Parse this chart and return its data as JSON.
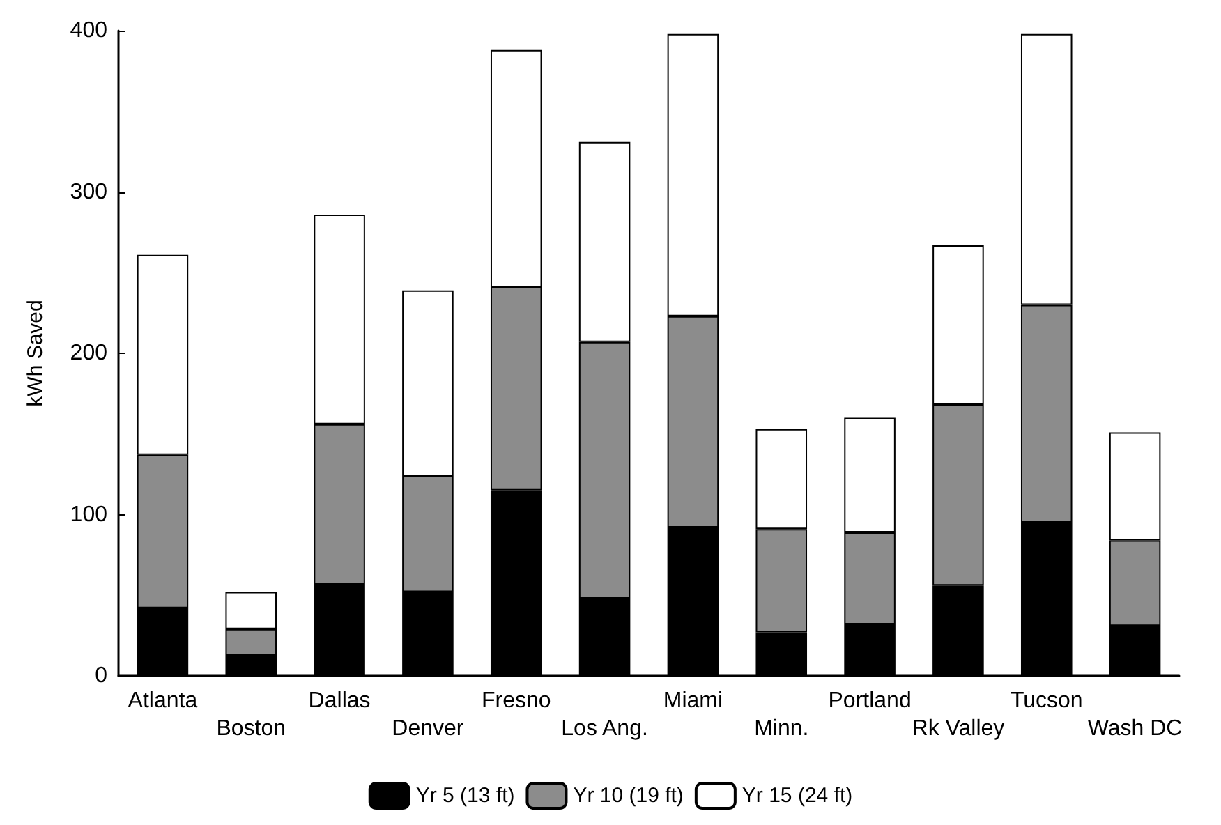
{
  "chart_data": {
    "type": "bar",
    "stacked": true,
    "ylabel": "kWh Saved",
    "categories": [
      "Atlanta",
      "Boston",
      "Dallas",
      "Denver",
      "Fresno",
      "Los Ang.",
      "Miami",
      "Minn.",
      "Portland",
      "Rk Valley",
      "Tucson",
      "Wash DC"
    ],
    "series": [
      {
        "name": "Yr 5 (13 ft)",
        "color": "#000000",
        "values": [
          42,
          13,
          57,
          52,
          115,
          48,
          92,
          27,
          32,
          56,
          95,
          31
        ]
      },
      {
        "name": "Yr 10 (19 ft)",
        "color": "#8c8c8c",
        "values": [
          95,
          16,
          99,
          72,
          126,
          159,
          131,
          64,
          57,
          112,
          135,
          53
        ]
      },
      {
        "name": "Yr 15 (24 ft)",
        "color": "#ffffff",
        "values": [
          124,
          23,
          130,
          115,
          147,
          124,
          175,
          62,
          71,
          99,
          168,
          67
        ]
      }
    ],
    "ylim": [
      0,
      400
    ],
    "yticks": [
      0,
      100,
      200,
      300,
      400
    ],
    "grid": false,
    "legend": "bottom"
  }
}
